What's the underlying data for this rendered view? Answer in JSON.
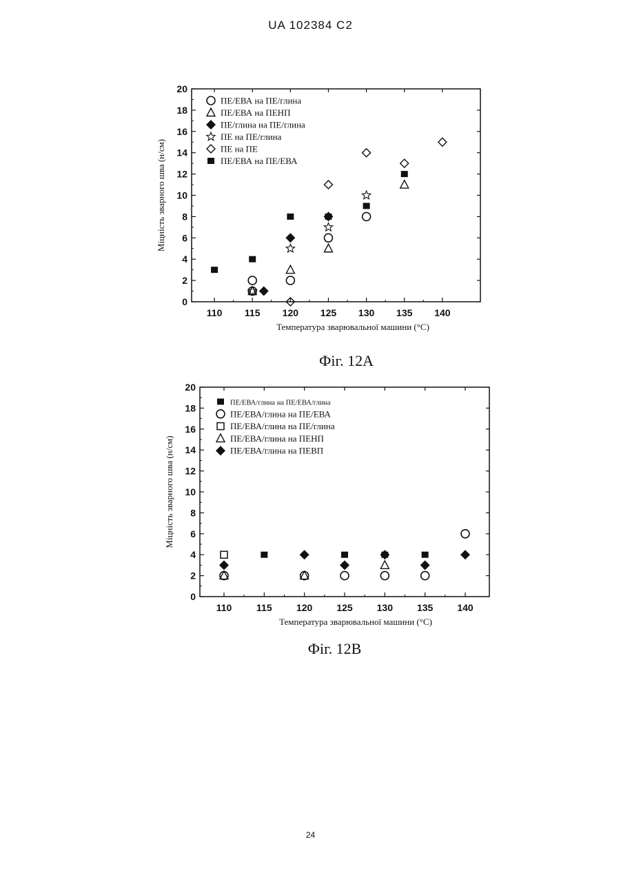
{
  "page": {
    "header": "UA   102384   C2",
    "page_number": "24"
  },
  "chart_data": [
    {
      "id": "fig-12a",
      "type": "scatter",
      "caption": "Фіг. 12A",
      "xlabel": "Температура зварювальної машини (°C)",
      "ylabel": "Міцність зварного шва  (н/см)",
      "xlim": [
        107,
        145
      ],
      "ylim": [
        0,
        20
      ],
      "xticks": [
        110,
        115,
        120,
        125,
        130,
        135,
        140
      ],
      "yticks": [
        0,
        2,
        4,
        6,
        8,
        10,
        12,
        14,
        16,
        18,
        20
      ],
      "legend_position": "top-left",
      "series": [
        {
          "name": "ПЕ/ЕВА на ПЕ/глина",
          "marker": "circle-open",
          "points": [
            [
              115,
              2
            ],
            [
              115,
              1
            ],
            [
              120,
              2
            ],
            [
              125,
              6
            ],
            [
              130,
              8
            ]
          ]
        },
        {
          "name": "ПЕ/ЕВА на ПЕНП",
          "marker": "triangle-open",
          "points": [
            [
              115,
              1
            ],
            [
              120,
              3
            ],
            [
              125,
              5
            ],
            [
              135,
              11
            ]
          ]
        },
        {
          "name": "ПЕ/глина на ПЕ/глина",
          "marker": "diamond-filled",
          "points": [
            [
              116.5,
              1
            ],
            [
              120,
              6
            ],
            [
              125,
              8
            ]
          ]
        },
        {
          "name": "ПЕ на ПЕ/глина",
          "marker": "star-open",
          "points": [
            [
              115,
              1
            ],
            [
              120,
              5
            ],
            [
              125,
              7
            ],
            [
              130,
              10
            ]
          ]
        },
        {
          "name": "ПЕ на ПЕ",
          "marker": "diamond-open",
          "points": [
            [
              120,
              0
            ],
            [
              125,
              11
            ],
            [
              130,
              14
            ],
            [
              135,
              13
            ],
            [
              140,
              15
            ]
          ]
        },
        {
          "name": "ПЕ/ЕВА на ПЕ/ЕВА",
          "marker": "square-filled",
          "points": [
            [
              110,
              3
            ],
            [
              115,
              4
            ],
            [
              120,
              8
            ],
            [
              125,
              8
            ],
            [
              130,
              9
            ],
            [
              135,
              12
            ]
          ]
        }
      ]
    },
    {
      "id": "fig-12b",
      "type": "scatter",
      "caption": "Фіг. 12B",
      "xlabel": "Температура зварювальної машини (°C)",
      "ylabel": "Міцність зварного шва  (н/см)",
      "xlim": [
        107,
        143
      ],
      "ylim": [
        0,
        20
      ],
      "xticks": [
        110,
        115,
        120,
        125,
        130,
        135,
        140
      ],
      "yticks": [
        0,
        2,
        4,
        6,
        8,
        10,
        12,
        14,
        16,
        18,
        20
      ],
      "legend_position": "top-left",
      "series": [
        {
          "name": "ПЕ/ЕВА/глина на ПЕ/ЕВА/глина",
          "marker": "square-filled",
          "small_label": true,
          "points": [
            [
              115,
              4
            ],
            [
              125,
              4
            ],
            [
              130,
              4
            ],
            [
              135,
              4
            ]
          ]
        },
        {
          "name": "ПЕ/ЕВА/глина на ПЕ/ЕВА",
          "marker": "circle-open",
          "points": [
            [
              110,
              2
            ],
            [
              120,
              2
            ],
            [
              125,
              2
            ],
            [
              130,
              2
            ],
            [
              135,
              2
            ],
            [
              140,
              6
            ]
          ]
        },
        {
          "name": "ПЕ/ЕВА/глина на ПЕ/глина",
          "marker": "square-open",
          "points": [
            [
              110,
              4
            ]
          ]
        },
        {
          "name": "ПЕ/ЕВА/глина на ПЕНП",
          "marker": "triangle-open",
          "points": [
            [
              110,
              2
            ],
            [
              120,
              2
            ],
            [
              130,
              3
            ]
          ]
        },
        {
          "name": "ПЕ/ЕВА/глина на ПЕВП",
          "marker": "diamond-filled",
          "points": [
            [
              110,
              3
            ],
            [
              120,
              4
            ],
            [
              125,
              3
            ],
            [
              130,
              4
            ],
            [
              135,
              3
            ],
            [
              140,
              4
            ]
          ]
        }
      ]
    }
  ]
}
